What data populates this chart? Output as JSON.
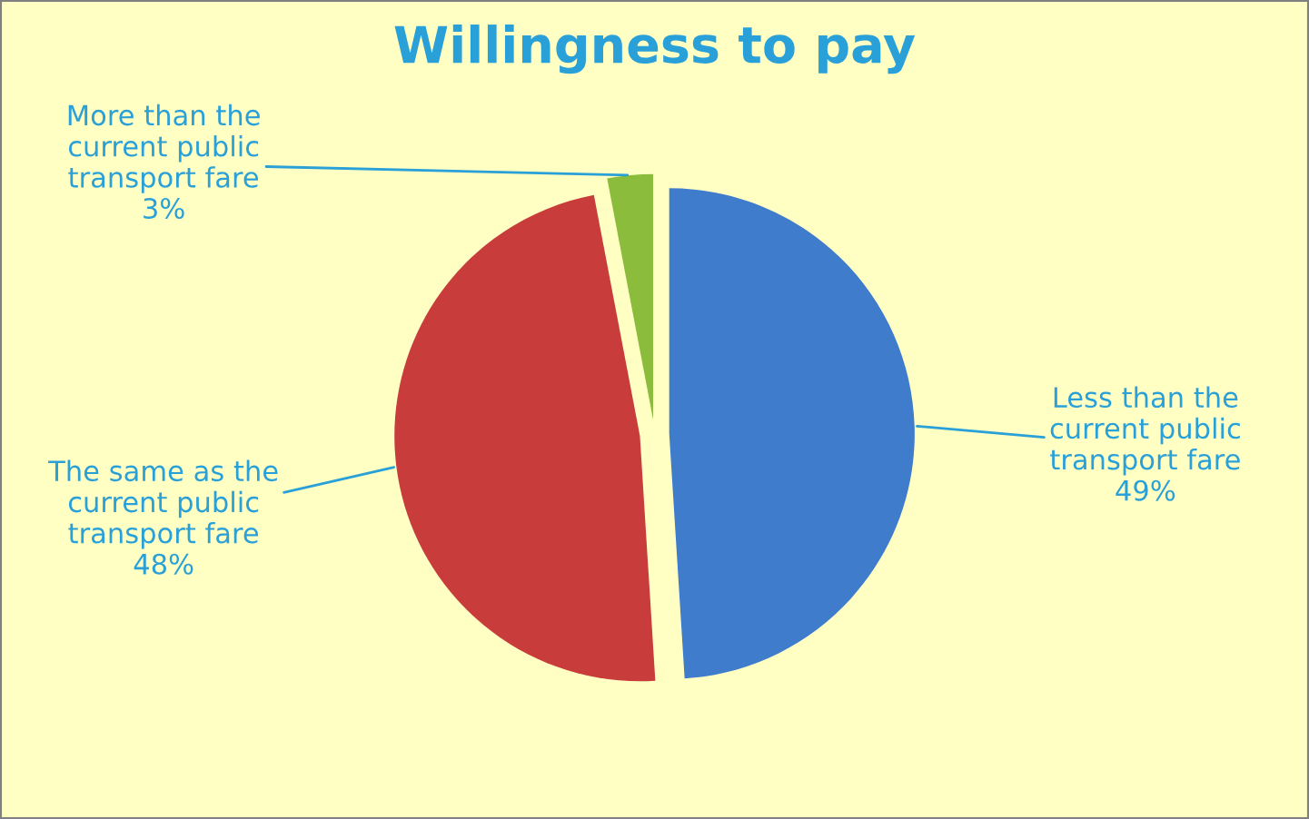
{
  "chart_data": {
    "type": "pie",
    "title": "Willingness to pay",
    "categories": [
      "Less than the current public transport fare",
      "The same as the current public transport fare",
      "More than the current public transport fare"
    ],
    "values": [
      49,
      48,
      3
    ],
    "colors": [
      "#3f7ccc",
      "#c83c3c",
      "#8cbc3c"
    ],
    "value_labels": [
      "49%",
      "48%",
      "3%"
    ],
    "legend": false
  }
}
